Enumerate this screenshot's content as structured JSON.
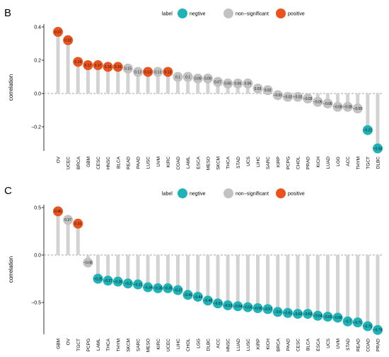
{
  "legend": {
    "title": "label",
    "entries": [
      {
        "name": "negtive",
        "color": "#1fb3b8"
      },
      {
        "name": "non−significant",
        "color": "#c2c2c2"
      },
      {
        "name": "positive",
        "color": "#e8531e"
      }
    ]
  },
  "chart_data": [
    {
      "panel": "B",
      "type": "lollipop",
      "ylabel": "correlation",
      "ylim": [
        -0.36,
        0.42
      ],
      "yticks": [
        -0.2,
        0.0,
        0.2,
        0.4
      ],
      "ytick_labels": [
        "−0.2",
        "0.0",
        "0.2",
        "0.4"
      ],
      "grid": false,
      "legend_position": "top",
      "categories": [
        "OV",
        "UCEC",
        "BRCA",
        "GBM",
        "CESC",
        "HNSC",
        "BLCA",
        "READ",
        "PAAD",
        "LUSC",
        "UVM",
        "KIRC",
        "COAD",
        "LAML",
        "ESCA",
        "MESO",
        "SKCM",
        "THCA",
        "STAD",
        "UCS",
        "LIHC",
        "SARC",
        "KIRP",
        "PCPG",
        "CHOL",
        "PRAD",
        "KICH",
        "LUAD",
        "LGG",
        "ACC",
        "THYM",
        "TGCT",
        "DLBC"
      ],
      "values": [
        0.37,
        0.32,
        0.19,
        0.17,
        0.17,
        0.16,
        0.16,
        0.15,
        0.13,
        0.13,
        0.13,
        0.13,
        0.1,
        0.1,
        0.09,
        0.09,
        0.07,
        0.06,
        0.06,
        0.06,
        0.03,
        0.02,
        -0.01,
        -0.02,
        -0.02,
        -0.03,
        -0.05,
        -0.06,
        -0.08,
        -0.08,
        -0.09,
        -0.22,
        -0.33
      ],
      "value_labels": [
        "0.37",
        "0.32",
        "0.19",
        "0.17",
        "0.17",
        "0.16",
        "0.16",
        "0.15",
        "0.13",
        "0.13",
        "0.13",
        "0.13",
        "0.1",
        "0.1",
        "0.09",
        "0.09",
        "0.07",
        "0.06",
        "0.06",
        "0.06",
        "0.03",
        "0.02",
        "−0.01",
        "−0.02",
        "−0.02",
        "−0.03",
        "−0.05",
        "−0.06",
        "−0.08",
        "−0.08",
        "−0.09",
        "−0.22",
        "−0.33"
      ],
      "labels": [
        "positive",
        "positive",
        "positive",
        "positive",
        "positive",
        "positive",
        "positive",
        "non-significant",
        "non-significant",
        "positive",
        "non-significant",
        "positive",
        "non-significant",
        "non-significant",
        "non-significant",
        "non-significant",
        "non-significant",
        "non-significant",
        "non-significant",
        "non-significant",
        "non-significant",
        "non-significant",
        "non-significant",
        "non-significant",
        "non-significant",
        "non-significant",
        "non-significant",
        "non-significant",
        "non-significant",
        "non-significant",
        "non-significant",
        "negtive",
        "negtive"
      ]
    },
    {
      "panel": "C",
      "type": "lollipop",
      "ylabel": "correlation",
      "ylim": [
        -0.9,
        0.55
      ],
      "yticks": [
        -0.5,
        0.0,
        0.5
      ],
      "ytick_labels": [
        "−0.5",
        "0.0",
        "0.5"
      ],
      "grid": false,
      "legend_position": "top",
      "categories": [
        "GBM",
        "OV",
        "TGCT",
        "PCPG",
        "LAML",
        "THCA",
        "THYM",
        "SKCM",
        "SARC",
        "MESO",
        "KIRC",
        "UCEC",
        "LIHC",
        "CHOL",
        "LGG",
        "DLBC",
        "ACC",
        "HNSC",
        "LUAD",
        "LUSC",
        "KIRP",
        "KICH",
        "BRCA",
        "PAAD",
        "CESC",
        "BLCA",
        "ESCA",
        "UCS",
        "UVM",
        "STAD",
        "READ",
        "COAD",
        "PRAD"
      ],
      "values": [
        0.46,
        0.37,
        0.33,
        -0.08,
        -0.25,
        -0.27,
        -0.28,
        -0.3,
        -0.31,
        -0.34,
        -0.35,
        -0.35,
        -0.37,
        -0.42,
        -0.44,
        -0.48,
        -0.51,
        -0.53,
        -0.54,
        -0.55,
        -0.56,
        -0.57,
        -0.6,
        -0.61,
        -0.62,
        -0.62,
        -0.64,
        -0.65,
        -0.66,
        -0.7,
        -0.71,
        -0.75,
        -0.79
      ],
      "value_labels": [
        "0.46",
        "0.37",
        "0.33",
        "−0.08",
        "−0.25",
        "−0.27",
        "−0.28",
        "−0.3",
        "−0.31",
        "−0.34",
        "−0.35",
        "−0.35",
        "−0.37",
        "−0.42",
        "−0.44",
        "−0.48",
        "−0.51",
        "−0.53",
        "−0.54",
        "−0.55",
        "−0.56",
        "−0.57",
        "−0.6",
        "−0.61",
        "−0.62",
        "−0.62",
        "−0.64",
        "−0.65",
        "−0.66",
        "−0.7",
        "−0.71",
        "−0.75",
        "−0.79"
      ],
      "labels": [
        "positive",
        "non-significant",
        "positive",
        "non-significant",
        "negtive",
        "negtive",
        "negtive",
        "negtive",
        "negtive",
        "negtive",
        "negtive",
        "negtive",
        "negtive",
        "negtive",
        "negtive",
        "negtive",
        "negtive",
        "negtive",
        "negtive",
        "negtive",
        "negtive",
        "negtive",
        "negtive",
        "negtive",
        "negtive",
        "negtive",
        "negtive",
        "negtive",
        "negtive",
        "negtive",
        "negtive",
        "negtive",
        "negtive"
      ]
    }
  ]
}
